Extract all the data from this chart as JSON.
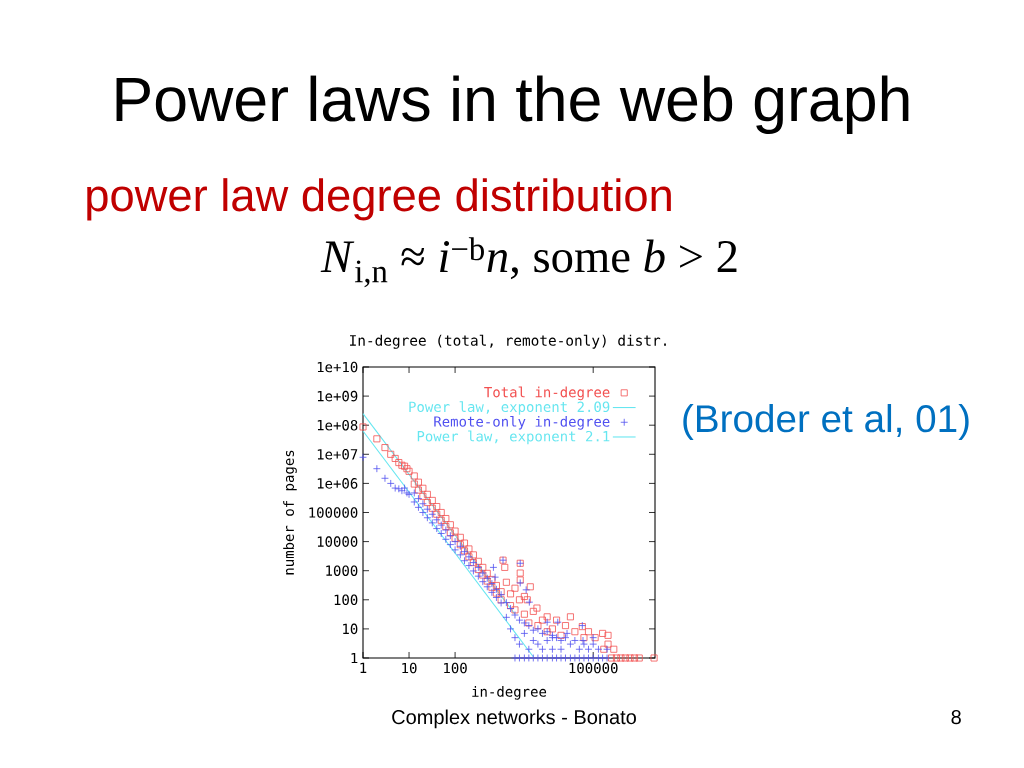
{
  "chart_data": {
    "type": "scatter",
    "title": "Power laws in the web graph",
    "subtitle": "power law degree distribution",
    "annotations": [
      "*N*$_{i,n}$ ≈ *i*$^{−b}$*n*, some *b* > 2",
      "In-degree (total, remote-only) distr.",
      "(Broder et al, 01)",
      "Complex networks - Bonato",
      "8"
    ],
    "xlabel": "in-degree",
    "ylabel": "number of pages",
    "log": "xy",
    "xlim": [
      1,
      2200000
    ],
    "ylim": [
      1,
      10000000000
    ],
    "xticks": [
      1,
      10,
      100,
      100000
    ],
    "yticks": [
      1,
      10,
      100,
      1000,
      10000,
      100000,
      {
        "value": 1000000,
        "label": "1e+06"
      },
      {
        "value": 10000000,
        "label": "1e+07"
      },
      {
        "value": 100000000,
        "label": "1e+08"
      },
      {
        "value": 1000000000,
        "label": "1e+09"
      },
      {
        "value": 10000000000,
        "label": "1e+10"
      }
    ],
    "legend": "top right",
    "series": [
      {
        "name": "Total in-degree",
        "color": "#f25050",
        "marker": "square",
        "x": [
          1,
          2,
          3,
          4,
          5,
          6,
          7,
          8,
          9,
          10,
          13,
          13,
          16,
          16,
          20,
          20,
          25,
          25,
          32,
          32,
          40,
          40,
          50,
          50,
          63,
          63,
          79,
          79,
          100,
          100,
          130,
          130,
          160,
          160,
          200,
          200,
          250,
          250,
          320,
          320,
          400,
          400,
          500,
          500,
          630,
          630,
          790,
          790,
          1000,
          1000,
          1100,
          1200,
          1300,
          1600,
          1600,
          2000,
          2000,
          2600,
          2600,
          2600,
          2500,
          3200,
          3200,
          3700,
          4300,
          4000,
          5000,
          6000,
          6300,
          7900,
          10000,
          10000,
          13000,
          16000,
          20000,
          25000,
          32000,
          40000,
          58000,
          63000,
          79000,
          110000,
          160000,
          170000,
          210000,
          210000,
          280000,
          250000,
          320000,
          400000,
          500000,
          630000,
          790000,
          1000000,
          2100000
        ],
        "values": [
          87000000,
          34000000,
          17000000,
          10000000,
          7200000,
          5200000,
          4200000,
          3900000,
          3200000,
          2600000,
          1800000,
          950000,
          1100000,
          590000,
          680000,
          360000,
          420000,
          220000,
          260000,
          140000,
          160000,
          87000,
          100000,
          54000,
          62000,
          33000,
          38000,
          20000,
          23000,
          13000,
          14000,
          7800,
          8900,
          4800,
          5600,
          3000,
          3500,
          1900,
          2100,
          1100,
          1300,
          710,
          810,
          440,
          500,
          270,
          310,
          170,
          190,
          100,
          2300,
          1300,
          400,
          160,
          63,
          250,
          45,
          1800,
          830,
          480,
          100,
          32,
          130,
          100,
          280,
          16,
          40,
          52,
          13,
          20,
          26,
          8,
          10,
          20,
          6,
          13,
          26,
          8,
          12,
          5,
          8,
          5,
          7,
          2,
          6,
          3,
          2,
          1,
          1,
          1,
          1,
          1,
          1,
          1,
          1
        ]
      },
      {
        "name": "Power law, exponent 2.09",
        "type": "line",
        "color": "#66e6f0",
        "x": [
          1,
          2000
        ],
        "values": [
          250000000,
          32
        ]
      },
      {
        "name": "Remote-only in-degree",
        "color": "#5050f0",
        "marker": "cross",
        "x": [
          1,
          2,
          3,
          4,
          5,
          6,
          7,
          8,
          9,
          10,
          13,
          13,
          16,
          16,
          20,
          20,
          25,
          25,
          32,
          32,
          40,
          40,
          50,
          50,
          63,
          63,
          79,
          79,
          100,
          100,
          130,
          130,
          160,
          160,
          200,
          200,
          250,
          250,
          320,
          320,
          400,
          400,
          500,
          500,
          630,
          630,
          790,
          790,
          1000,
          1000,
          1300,
          1300,
          1600,
          1600,
          2000,
          2000,
          2500,
          2500,
          3200,
          3200,
          4000,
          4000,
          5000,
          5000,
          6300,
          6300,
          7900,
          7900,
          10000,
          10000,
          13000,
          13000,
          16000,
          20000,
          20000,
          25000,
          32000,
          40000,
          50000,
          63000,
          79000,
          100000,
          130000,
          200000,
          1100,
          680,
          740,
          2600,
          2600,
          3500,
          4100,
          10000,
          17000,
          58000,
          100000,
          60000,
          13000,
          27000,
          2000,
          2500,
          3200,
          4000,
          5000,
          6300,
          7900,
          10000,
          13000,
          16000,
          20000,
          25000,
          32000,
          40000,
          50000,
          63000,
          79000,
          100000,
          130000,
          160000,
          200000
        ],
        "values": [
          7900000,
          3200000,
          1500000,
          1000000,
          690000,
          650000,
          560000,
          690000,
          470000,
          420000,
          470000,
          230000,
          300000,
          150000,
          200000,
          100000,
          130000,
          66000,
          87000,
          44000,
          56000,
          28000,
          37000,
          19000,
          25000,
          12000,
          16000,
          7900,
          10000,
          5200,
          6900,
          3500,
          4500,
          2200,
          3000,
          1500,
          1900,
          980,
          1300,
          650,
          830,
          420,
          550,
          280,
          360,
          180,
          230,
          120,
          150,
          78,
          80,
          25,
          50,
          10,
          30,
          5,
          20,
          3,
          16,
          7,
          13,
          2,
          9,
          4,
          10,
          3,
          7,
          2,
          8,
          4,
          6,
          2,
          5,
          4,
          2,
          5,
          3,
          4,
          2,
          3,
          2,
          3,
          2,
          2,
          2300,
          1300,
          600,
          1800,
          380,
          220,
          83,
          17,
          17,
          13,
          5,
          4,
          5,
          7,
          1,
          1,
          1,
          1,
          1,
          1,
          1,
          1,
          1,
          1,
          1,
          1,
          1,
          1,
          1,
          1,
          1,
          1,
          1,
          1,
          1
        ]
      },
      {
        "name": "Power law, exponent 2.1",
        "type": "line",
        "color": "#66e6f0",
        "x": [
          1,
          5000
        ],
        "values": [
          63000000,
          1.1
        ]
      }
    ]
  }
}
